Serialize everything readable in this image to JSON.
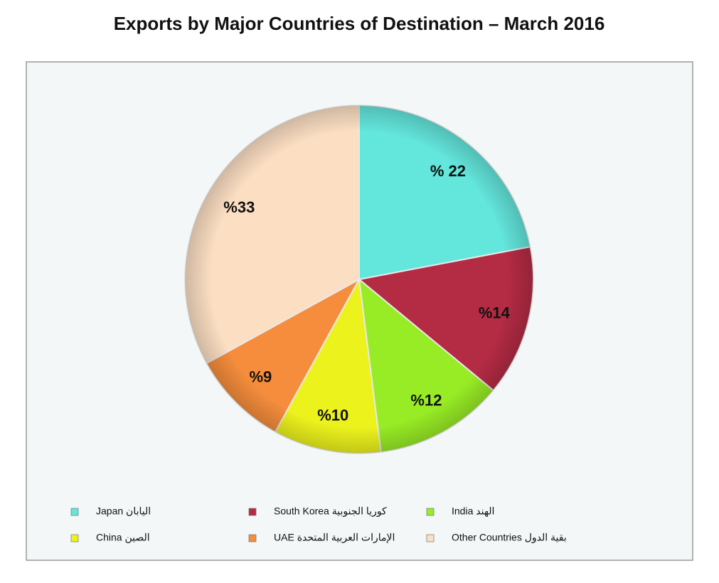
{
  "chart_data": {
    "type": "pie",
    "title": "Exports by Major Countries of Destination – March 2016",
    "categories": [
      "Japan  اليابان",
      "South Korea كوريا الجنوبية",
      "India  الهند",
      "China  الصين",
      "UAE الإمارات العربية المتحدة",
      "Other Countries بقية الدول"
    ],
    "values": [
      22,
      14,
      12,
      10,
      9,
      33
    ],
    "value_labels": [
      "% 22",
      "%14",
      "%12",
      "%10",
      "%9",
      "%33"
    ],
    "colors": [
      "#63e6dc",
      "#b42b44",
      "#98ec25",
      "#ecf21c",
      "#f58d3c",
      "#fcdfc3"
    ],
    "legend": "bottom"
  }
}
